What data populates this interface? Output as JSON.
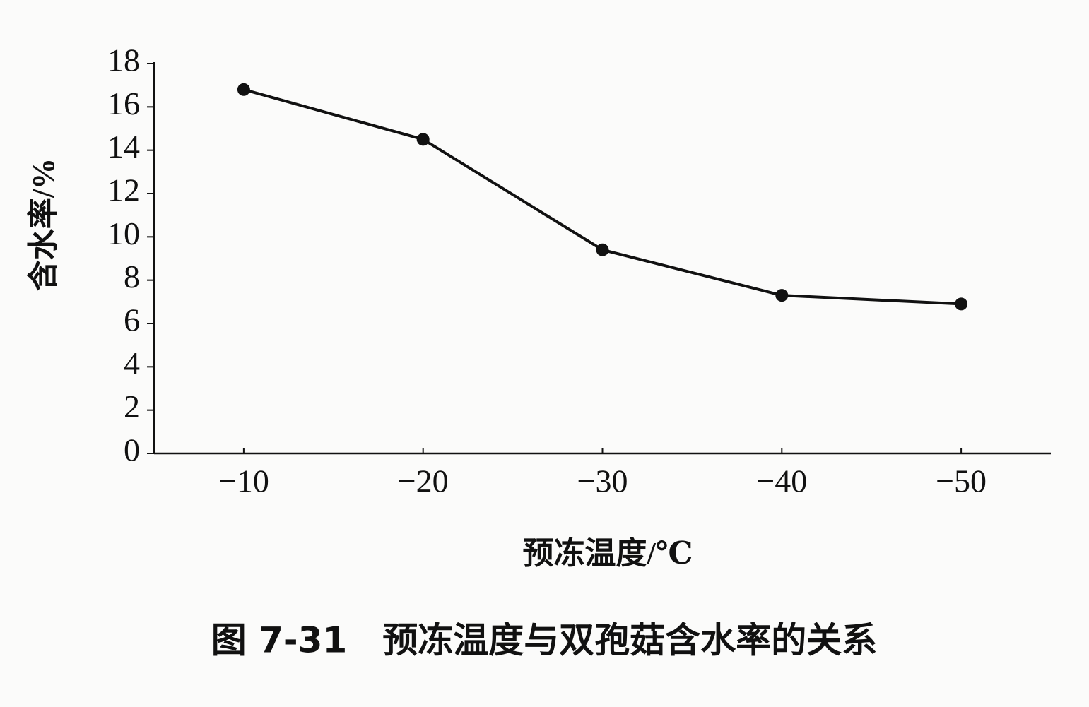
{
  "chart_data": {
    "type": "line",
    "title": "图 7-31　预冻温度与双孢菇含水率的关系",
    "x_label": "预冻温度/℃",
    "y_label": "含水率/%",
    "categories": [
      "−10",
      "−20",
      "−30",
      "−40",
      "−50"
    ],
    "series": [
      {
        "name": "含水率",
        "color": "#111111",
        "values": [
          16.8,
          14.5,
          9.4,
          7.3,
          6.9
        ]
      }
    ],
    "ylim": [
      0,
      18
    ],
    "yticks": [
      0,
      2,
      4,
      6,
      8,
      10,
      12,
      14,
      16,
      18
    ],
    "grid": false
  }
}
